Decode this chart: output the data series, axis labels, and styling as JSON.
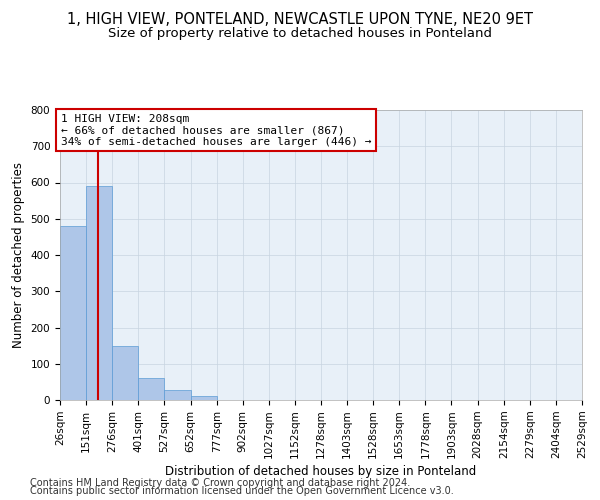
{
  "title": "1, HIGH VIEW, PONTELAND, NEWCASTLE UPON TYNE, NE20 9ET",
  "subtitle": "Size of property relative to detached houses in Ponteland",
  "xlabel": "Distribution of detached houses by size in Ponteland",
  "ylabel": "Number of detached properties",
  "footnote1": "Contains HM Land Registry data © Crown copyright and database right 2024.",
  "footnote2": "Contains public sector information licensed under the Open Government Licence v3.0.",
  "annotation_line1": "1 HIGH VIEW: 208sqm",
  "annotation_line2": "← 66% of detached houses are smaller (867)",
  "annotation_line3": "34% of semi-detached houses are larger (446) →",
  "bin_edges": [
    26,
    151,
    276,
    401,
    527,
    652,
    777,
    902,
    1027,
    1152,
    1278,
    1403,
    1528,
    1653,
    1778,
    1903,
    2028,
    2154,
    2279,
    2404,
    2529
  ],
  "bar_heights": [
    480,
    590,
    150,
    60,
    28,
    10,
    0,
    0,
    0,
    0,
    0,
    0,
    0,
    0,
    0,
    0,
    0,
    0,
    0,
    0
  ],
  "bar_color": "#aec6e8",
  "bar_edge_color": "#5b9bd5",
  "vline_color": "#cc0000",
  "vline_x": 208,
  "annotation_box_color": "#cc0000",
  "background_color": "#ffffff",
  "grid_color": "#c8d4e0",
  "axis_bg_color": "#e8f0f8",
  "ylim": [
    0,
    800
  ],
  "yticks": [
    0,
    100,
    200,
    300,
    400,
    500,
    600,
    700,
    800
  ],
  "title_fontsize": 10.5,
  "subtitle_fontsize": 9.5,
  "axis_label_fontsize": 8.5,
  "tick_fontsize": 7.5,
  "annotation_fontsize": 8,
  "footnote_fontsize": 7
}
